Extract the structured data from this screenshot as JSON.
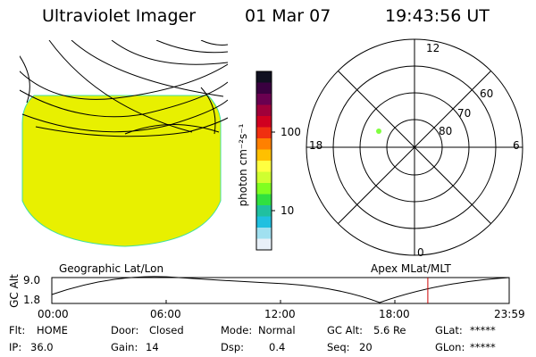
{
  "header": {
    "instrument": "Ultraviolet Imager",
    "date": "01 Mar 07",
    "time": "19:43:56 UT"
  },
  "colorbar": {
    "unit_label": "photon cm⁻²s⁻¹",
    "ticks": [
      "100",
      "10"
    ],
    "colors": [
      "#101020",
      "#3a0040",
      "#6a0050",
      "#a0003a",
      "#d00020",
      "#f03010",
      "#ff8000",
      "#ffc000",
      "#ffff40",
      "#d0ff30",
      "#80ff20",
      "#30e040",
      "#20c0a0",
      "#20c0e0",
      "#a0e0f0",
      "#e8f0f8"
    ]
  },
  "polar_plot": {
    "hour_labels": {
      "top": "12",
      "left": "18",
      "right": "6",
      "bottom": "0"
    },
    "lat_labels": [
      "60",
      "70",
      "80"
    ]
  },
  "map_captions": {
    "left": "Geographic Lat/Lon",
    "right": "Apex MLat/MLT"
  },
  "alt_plot": {
    "ylabel": "GC Alt",
    "yticks": [
      "9.0",
      "1.8"
    ],
    "xticks": [
      "00:00",
      "06:00",
      "12:00",
      "18:00",
      "23:59"
    ],
    "current_time_hours": 19.73
  },
  "status": {
    "flt_label": "Flt:",
    "flt_value": "HOME",
    "ip_label": "IP:",
    "ip_value": "36.0",
    "door_label": "Door:",
    "door_value": "Closed",
    "gain_label": "Gain:",
    "gain_value": "14",
    "mode_label": "Mode:",
    "mode_value": "Normal",
    "dsp_label": "Dsp:",
    "dsp_value": "0.4",
    "gcalt_label": "GC Alt:",
    "gcalt_value": "5.6 Re",
    "seq_label": "Seq:",
    "seq_value": "20",
    "glat_label": "GLat:",
    "glat_value": "*****",
    "glon_label": "GLon:",
    "glon_value": "*****"
  },
  "colors": {
    "image_fill": "#e8f000",
    "image_edge": "#40e0a0",
    "marker": "#80ff40",
    "time_marker": "#cc0000"
  }
}
